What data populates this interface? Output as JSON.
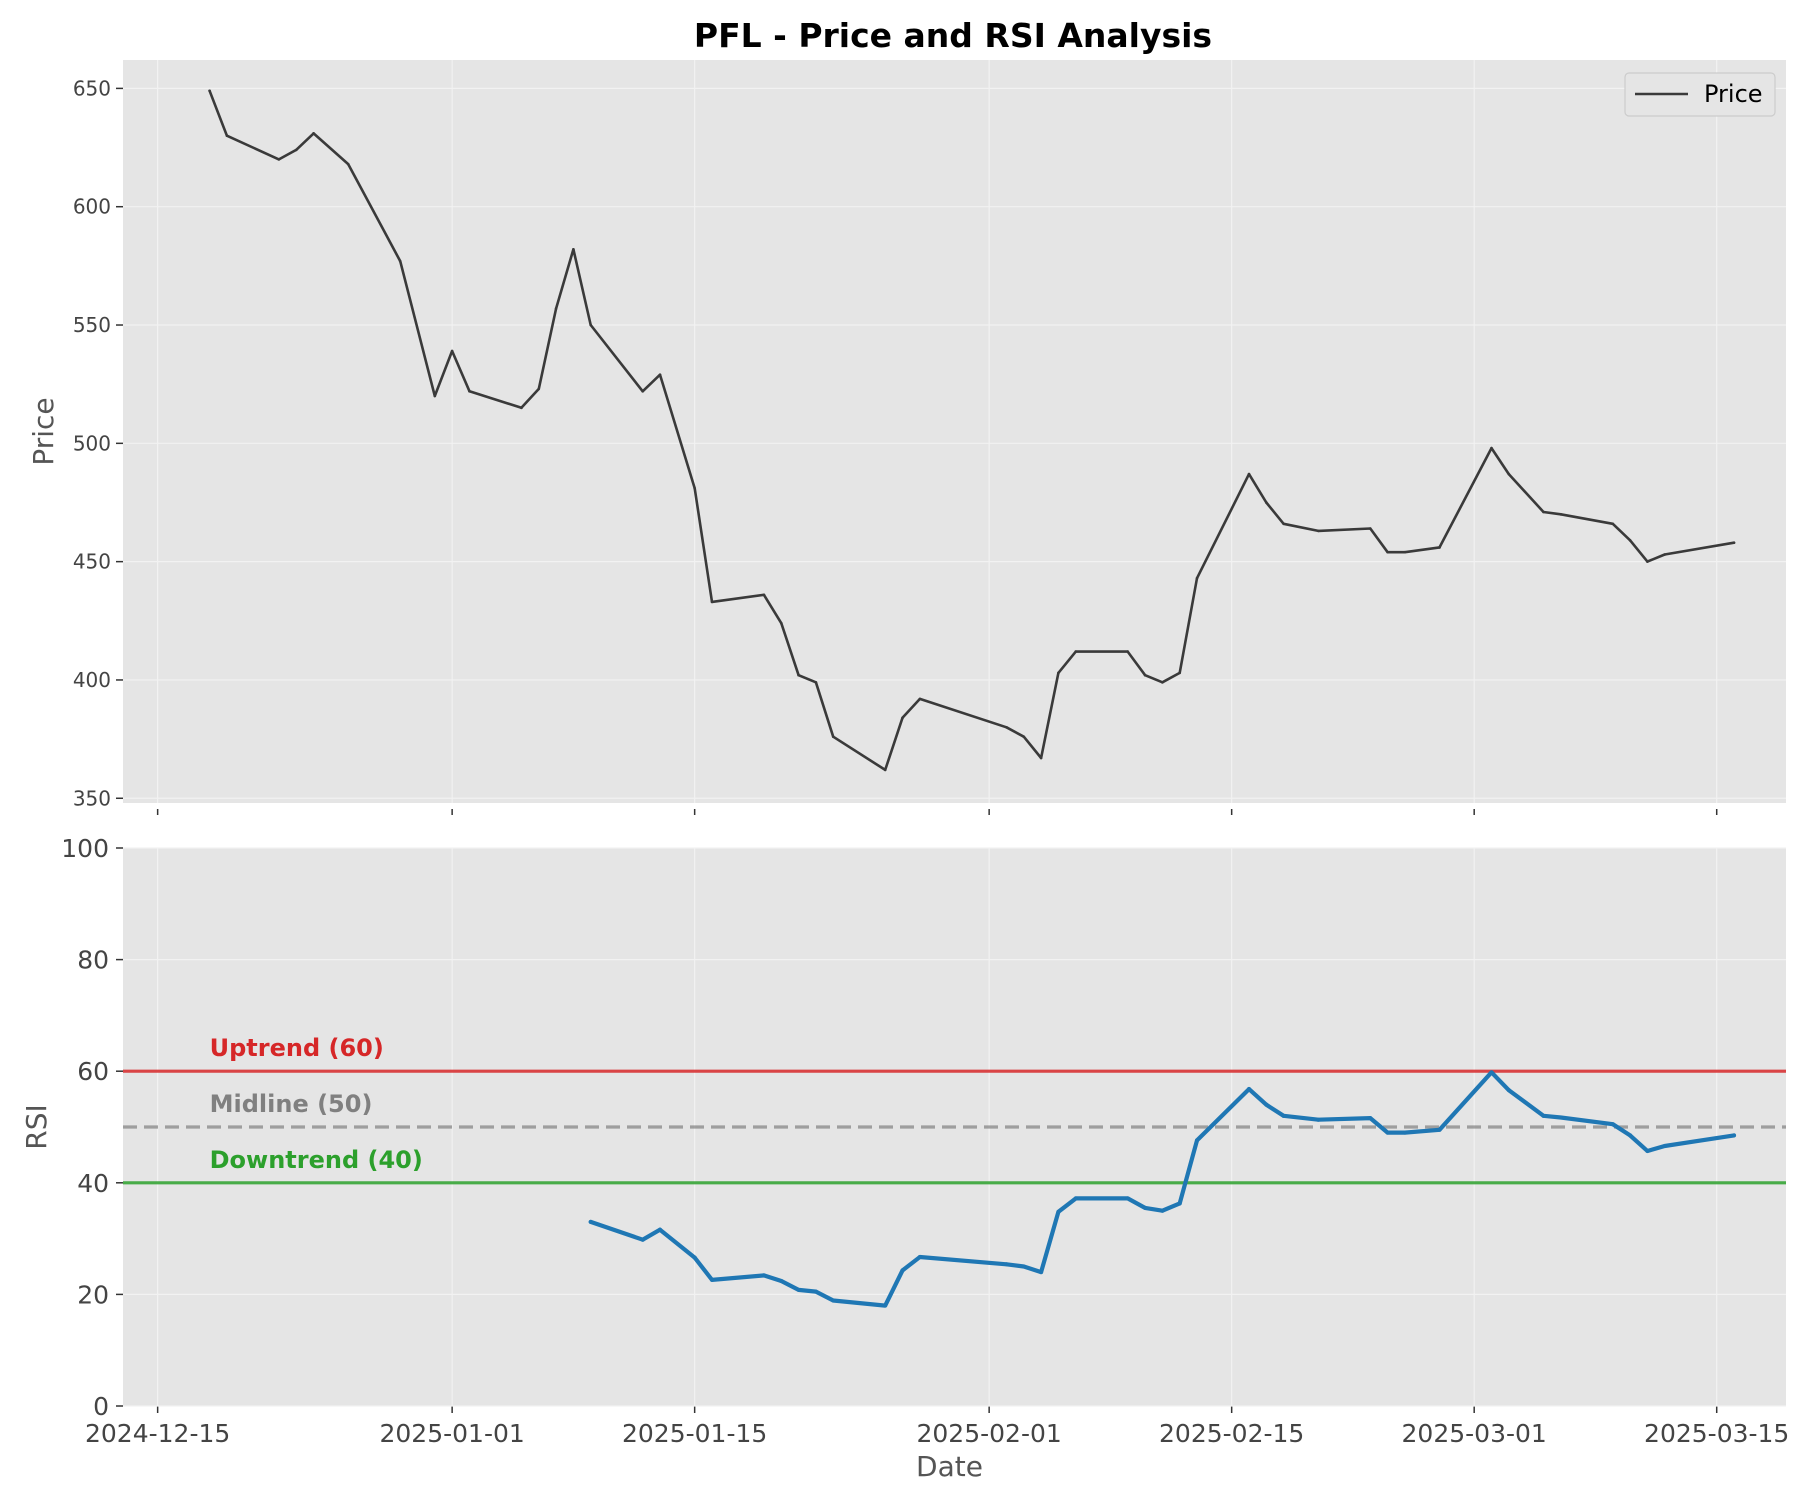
{
  "title": "PFL - Price and RSI Analysis",
  "colors": {
    "background": "#ffffff",
    "panel": "#e5e5e5",
    "grid": "#f2f2f2",
    "price_line": "#3a3a3a",
    "rsi_line": "#1f77b4",
    "uptrend": "#d62728",
    "midline": "#808080",
    "downtrend": "#2ca02c"
  },
  "chart_data": [
    {
      "type": "line",
      "panel": "top",
      "ylabel": "Price",
      "ylim": [
        348,
        662
      ],
      "xlim": [
        "2024-12-13",
        "2025-03-19"
      ],
      "yticks": [
        350,
        400,
        450,
        500,
        550,
        600,
        650
      ],
      "grid": true,
      "legend": {
        "position": "top-right",
        "entries": [
          "Price"
        ]
      },
      "series": [
        {
          "name": "Price",
          "color": "#3a3a3a",
          "points": [
            [
              "2024-12-18",
              649
            ],
            [
              "2024-12-19",
              630
            ],
            [
              "2024-12-22",
              620
            ],
            [
              "2024-12-23",
              624
            ],
            [
              "2024-12-24",
              631
            ],
            [
              "2024-12-26",
              618
            ],
            [
              "2024-12-29",
              577
            ],
            [
              "2024-12-31",
              520
            ],
            [
              "2025-01-01",
              539
            ],
            [
              "2025-01-02",
              522
            ],
            [
              "2025-01-05",
              515
            ],
            [
              "2025-01-06",
              523
            ],
            [
              "2025-01-07",
              557
            ],
            [
              "2025-01-08",
              582
            ],
            [
              "2025-01-09",
              550
            ],
            [
              "2025-01-12",
              522
            ],
            [
              "2025-01-13",
              529
            ],
            [
              "2025-01-15",
              481
            ],
            [
              "2025-01-16",
              433
            ],
            [
              "2025-01-19",
              436
            ],
            [
              "2025-01-20",
              424
            ],
            [
              "2025-01-21",
              402
            ],
            [
              "2025-01-22",
              399
            ],
            [
              "2025-01-23",
              376
            ],
            [
              "2025-01-26",
              362
            ],
            [
              "2025-01-27",
              384
            ],
            [
              "2025-01-28",
              392
            ],
            [
              "2025-02-02",
              380
            ],
            [
              "2025-02-03",
              376
            ],
            [
              "2025-02-04",
              367
            ],
            [
              "2025-02-05",
              403
            ],
            [
              "2025-02-06",
              412
            ],
            [
              "2025-02-09",
              412
            ],
            [
              "2025-02-10",
              402
            ],
            [
              "2025-02-11",
              399
            ],
            [
              "2025-02-12",
              403
            ],
            [
              "2025-02-13",
              443
            ],
            [
              "2025-02-16",
              487
            ],
            [
              "2025-02-17",
              475
            ],
            [
              "2025-02-18",
              466
            ],
            [
              "2025-02-20",
              463
            ],
            [
              "2025-02-23",
              464
            ],
            [
              "2025-02-24",
              454
            ],
            [
              "2025-02-25",
              454
            ],
            [
              "2025-02-27",
              456
            ],
            [
              "2025-03-02",
              498
            ],
            [
              "2025-03-03",
              487
            ],
            [
              "2025-03-05",
              471
            ],
            [
              "2025-03-06",
              470
            ],
            [
              "2025-03-09",
              466
            ],
            [
              "2025-03-10",
              459
            ],
            [
              "2025-03-11",
              450
            ],
            [
              "2025-03-12",
              453
            ],
            [
              "2025-03-16",
              458
            ]
          ]
        }
      ]
    },
    {
      "type": "line",
      "panel": "bottom",
      "ylabel": "RSI",
      "xlabel": "Date",
      "ylim": [
        0,
        100
      ],
      "xlim": [
        "2024-12-13",
        "2025-03-19"
      ],
      "yticks": [
        0,
        20,
        40,
        60,
        80,
        100
      ],
      "xticks": [
        "2024-12-15",
        "2025-01-01",
        "2025-01-15",
        "2025-02-01",
        "2025-02-15",
        "2025-03-01",
        "2025-03-15"
      ],
      "grid": true,
      "series": [
        {
          "name": "RSI",
          "color": "#1f77b4",
          "points": [
            [
              "2025-01-09",
              33.0
            ],
            [
              "2025-01-12",
              29.8
            ],
            [
              "2025-01-13",
              31.6
            ],
            [
              "2025-01-15",
              26.6
            ],
            [
              "2025-01-16",
              22.6
            ],
            [
              "2025-01-19",
              23.4
            ],
            [
              "2025-01-20",
              22.4
            ],
            [
              "2025-01-21",
              20.8
            ],
            [
              "2025-01-22",
              20.5
            ],
            [
              "2025-01-23",
              18.9
            ],
            [
              "2025-01-26",
              18.0
            ],
            [
              "2025-01-27",
              24.3
            ],
            [
              "2025-01-28",
              26.7
            ],
            [
              "2025-02-02",
              25.4
            ],
            [
              "2025-02-03",
              25.0
            ],
            [
              "2025-02-04",
              24.0
            ],
            [
              "2025-02-05",
              34.8
            ],
            [
              "2025-02-06",
              37.2
            ],
            [
              "2025-02-09",
              37.2
            ],
            [
              "2025-02-10",
              35.5
            ],
            [
              "2025-02-11",
              35.0
            ],
            [
              "2025-02-12",
              36.3
            ],
            [
              "2025-02-13",
              47.6
            ],
            [
              "2025-02-16",
              56.8
            ],
            [
              "2025-02-17",
              54.0
            ],
            [
              "2025-02-18",
              52.0
            ],
            [
              "2025-02-20",
              51.3
            ],
            [
              "2025-02-23",
              51.6
            ],
            [
              "2025-02-24",
              49.0
            ],
            [
              "2025-02-25",
              49.0
            ],
            [
              "2025-02-27",
              49.5
            ],
            [
              "2025-03-02",
              59.8
            ],
            [
              "2025-03-03",
              56.6
            ],
            [
              "2025-03-05",
              52.0
            ],
            [
              "2025-03-06",
              51.7
            ],
            [
              "2025-03-09",
              50.5
            ],
            [
              "2025-03-10",
              48.5
            ],
            [
              "2025-03-11",
              45.7
            ],
            [
              "2025-03-12",
              46.6
            ],
            [
              "2025-03-16",
              48.5
            ]
          ]
        }
      ],
      "reference_lines": [
        {
          "value": 60,
          "label": "Uptrend (60)",
          "color": "#d62728",
          "style": "solid"
        },
        {
          "value": 50,
          "label": "Midline (50)",
          "color": "#808080",
          "style": "dashed"
        },
        {
          "value": 40,
          "label": "Downtrend (40)",
          "color": "#2ca02c",
          "style": "solid"
        }
      ]
    }
  ]
}
